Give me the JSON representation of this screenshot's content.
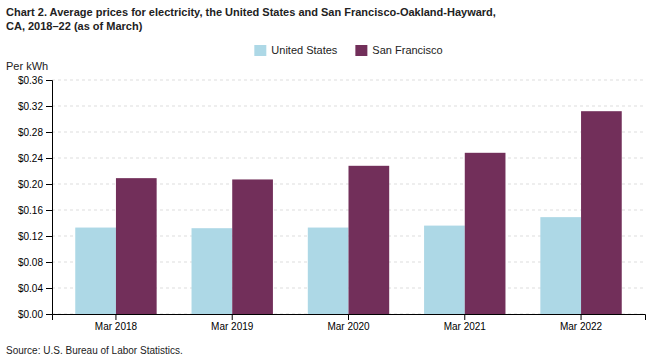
{
  "chart_data": {
    "type": "bar",
    "title": "Chart 2. Average prices for electricity, the United States and San Francisco-Oakland-Hayward,\nCA, 2018–22 (as of March)",
    "ylabel": "Per kWh",
    "source": "Source: U.S. Bureau of Labor Statistics.",
    "categories": [
      "Mar 2018",
      "Mar 2019",
      "Mar 2020",
      "Mar 2021",
      "Mar 2022"
    ],
    "series": [
      {
        "name": "United States",
        "color": "#ADD8E6",
        "values": [
          0.133,
          0.132,
          0.133,
          0.136,
          0.149
        ]
      },
      {
        "name": "San Francisco",
        "color": "#722F5A",
        "values": [
          0.209,
          0.207,
          0.228,
          0.248,
          0.312
        ]
      }
    ],
    "ylim": [
      0,
      0.36
    ],
    "yticks": [
      {
        "value": 0.0,
        "label": "$0.00"
      },
      {
        "value": 0.04,
        "label": "$0.04"
      },
      {
        "value": 0.08,
        "label": "$0.08"
      },
      {
        "value": 0.12,
        "label": "$0.12"
      },
      {
        "value": 0.16,
        "label": "$0.16"
      },
      {
        "value": 0.2,
        "label": "$0.20"
      },
      {
        "value": 0.24,
        "label": "$0.24"
      },
      {
        "value": 0.28,
        "label": "$0.28"
      },
      {
        "value": 0.32,
        "label": "$0.32"
      },
      {
        "value": 0.36,
        "label": "$0.36"
      }
    ],
    "grid": true,
    "legend": "top"
  }
}
